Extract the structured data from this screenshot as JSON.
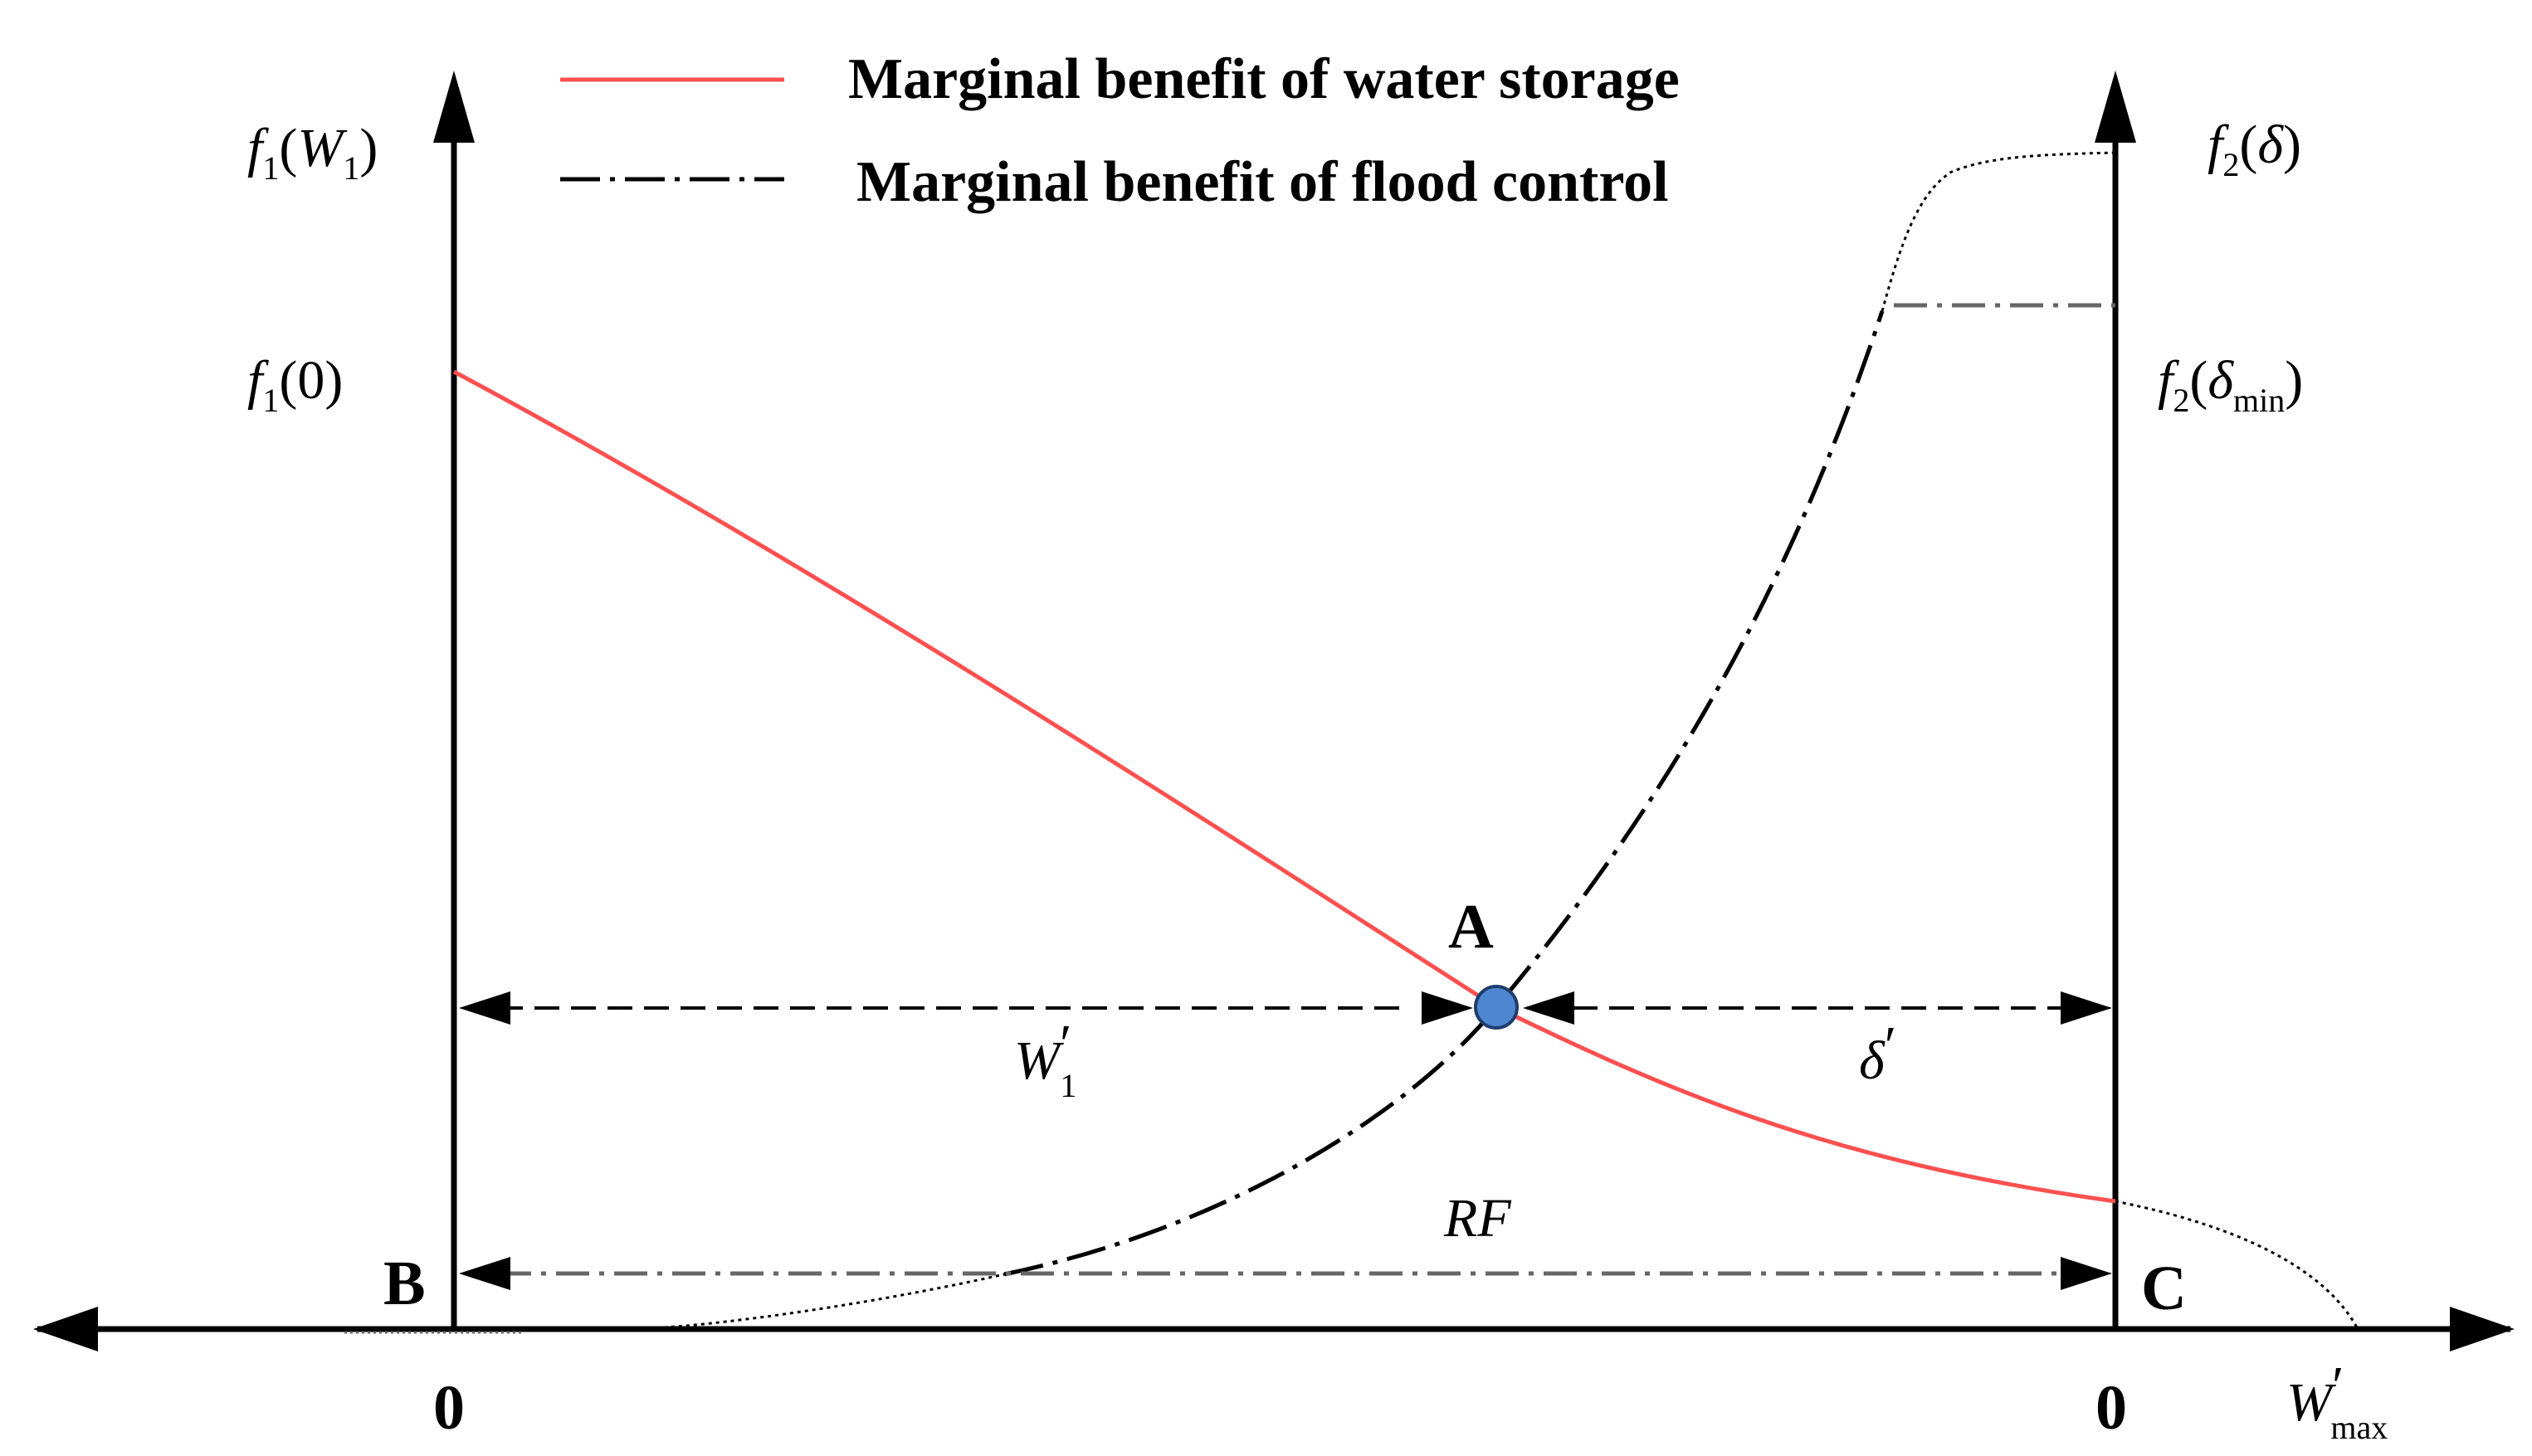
{
  "legend": {
    "water_storage": "Marginal benefit of water storage",
    "flood_control": "Marginal benefit of flood control"
  },
  "colors": {
    "water_storage": "#ff5050",
    "flood_control": "#000000",
    "point_a_fill": "#4f86d0",
    "point_a_stroke": "#1f3d6e",
    "axis": "#000000",
    "guide": "#666666"
  },
  "labels": {
    "f1_w1": {
      "f": "f",
      "sub": "1",
      "open": "(",
      "var": "W",
      "var_sub": "1",
      "close": ")"
    },
    "f1_0": {
      "f": "f",
      "sub": "1",
      "rest": "(0)"
    },
    "f2_delta": {
      "f": "f",
      "sub": "2",
      "open": "(",
      "var": "δ",
      "close": ")"
    },
    "f2_delta_min": {
      "f": "f",
      "sub": "2",
      "open": "(",
      "var": "δ",
      "var_sub": "min",
      "close": ")"
    },
    "w1_prime": {
      "var": "W",
      "sub": "1",
      "prime": "′"
    },
    "delta_prime": {
      "var": "δ",
      "prime": "′"
    },
    "rf": "RF",
    "w_max_prime": {
      "var": "W",
      "sub": "max",
      "prime": "′"
    }
  },
  "points": {
    "a": "A",
    "b": "B",
    "c": "C"
  },
  "axis_ticks": {
    "left_zero": "0",
    "right_zero": "0"
  }
}
